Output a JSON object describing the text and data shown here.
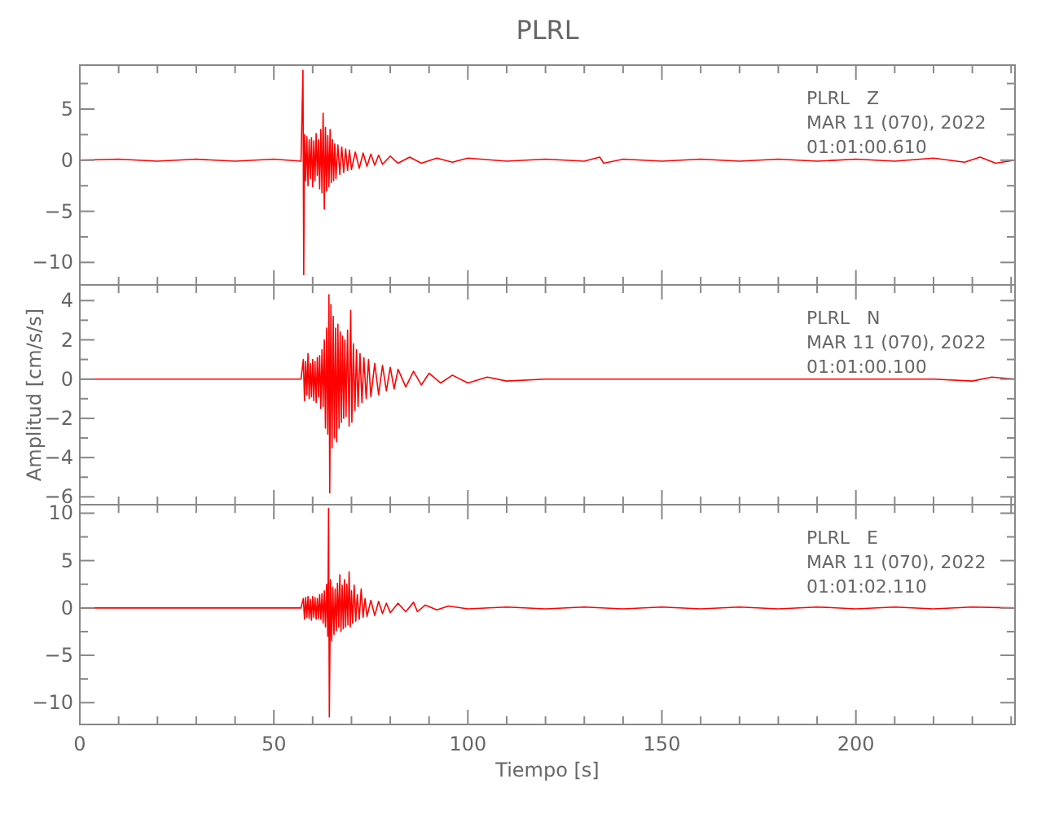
{
  "chart_data": [
    {
      "type": "line",
      "title": "PLRL",
      "annotations": [
        "PLRL   Z",
        "MAR 11 (070), 2022",
        "01:01:00.610"
      ],
      "tick_labels": "y",
      "grid": false,
      "marker": "none",
      "line_style": "solid",
      "xlim": [
        0,
        241
      ],
      "xticks": [
        0,
        {
          "value": 10,
          "label": null
        },
        {
          "value": 20,
          "label": null
        },
        {
          "value": 30,
          "label": null
        },
        {
          "value": 40,
          "label": null
        },
        50,
        {
          "value": 60,
          "label": null
        },
        {
          "value": 70,
          "label": null
        },
        {
          "value": 80,
          "label": null
        },
        {
          "value": 90,
          "label": null
        },
        100,
        {
          "value": 110,
          "label": null
        },
        {
          "value": 120,
          "label": null
        },
        {
          "value": 130,
          "label": null
        },
        {
          "value": 140,
          "label": null
        },
        150,
        {
          "value": 160,
          "label": null
        },
        {
          "value": 170,
          "label": null
        },
        {
          "value": 180,
          "label": null
        },
        {
          "value": 190,
          "label": null
        },
        200,
        {
          "value": 210,
          "label": null
        },
        {
          "value": 220,
          "label": null
        },
        {
          "value": 230,
          "label": null
        },
        {
          "value": 240,
          "label": null
        }
      ],
      "ylim": [
        -12.2,
        9.3
      ],
      "yticks": [
        -10,
        {
          "value": -7.5,
          "label": null
        },
        -5,
        {
          "value": -2.5,
          "label": null
        },
        0,
        {
          "value": 2.5,
          "label": null
        },
        5,
        {
          "value": 7.5,
          "label": null
        }
      ],
      "x": [
        0,
        10,
        20,
        30,
        40,
        50,
        57,
        57.5,
        57.7,
        57.9,
        58.2,
        58.5,
        58.8,
        59.1,
        59.4,
        59.7,
        60,
        60.3,
        60.6,
        60.9,
        61.2,
        61.5,
        61.8,
        62.1,
        62.4,
        62.7,
        63,
        63.3,
        63.6,
        63.9,
        64.2,
        64.5,
        64.8,
        65.1,
        65.4,
        65.7,
        66,
        66.5,
        67,
        67.5,
        68,
        68.5,
        69,
        69.5,
        70,
        71,
        72,
        73,
        74,
        75,
        76,
        77,
        78,
        80,
        82,
        85,
        88,
        92,
        96,
        100,
        110,
        120,
        130,
        134,
        135,
        140,
        150,
        160,
        170,
        180,
        190,
        200,
        210,
        220,
        228,
        232,
        236,
        241
      ],
      "series": [
        {
          "color": "#ff0000",
          "values": [
            0,
            0.1,
            -0.1,
            0.1,
            -0.1,
            0.1,
            -0.1,
            8.8,
            -11.2,
            2.5,
            -2.0,
            2.3,
            -2.5,
            2.0,
            -1.8,
            2.2,
            -2.6,
            1.9,
            -2.0,
            2.6,
            -1.5,
            2.0,
            -2.8,
            3.0,
            -3.2,
            4.6,
            -4.8,
            3.2,
            -3.0,
            2.4,
            -2.6,
            3.0,
            -2.2,
            2.0,
            -2.0,
            1.6,
            -1.8,
            1.5,
            -1.4,
            1.3,
            -1.2,
            1.1,
            -1.0,
            1.0,
            -0.9,
            0.8,
            -0.8,
            0.7,
            -0.6,
            0.6,
            -0.5,
            0.5,
            -0.4,
            0.4,
            -0.3,
            0.3,
            -0.3,
            0.2,
            -0.2,
            0.2,
            -0.1,
            0.1,
            -0.1,
            0.3,
            -0.3,
            0.1,
            -0.1,
            0.1,
            -0.1,
            0.1,
            -0.1,
            0.1,
            -0.1,
            0.2,
            -0.2,
            0.3,
            -0.3,
            0
          ]
        }
      ]
    },
    {
      "type": "line",
      "ylabel": "Amplitud [cm/s/s]",
      "annotations": [
        "PLRL   N",
        "MAR 11 (070), 2022",
        "01:01:00.100"
      ],
      "tick_labels": "y",
      "grid": false,
      "marker": "none",
      "line_style": "solid",
      "xlim": [
        0,
        241
      ],
      "xticks": [
        0,
        {
          "value": 10,
          "label": null
        },
        {
          "value": 20,
          "label": null
        },
        {
          "value": 30,
          "label": null
        },
        {
          "value": 40,
          "label": null
        },
        50,
        {
          "value": 60,
          "label": null
        },
        {
          "value": 70,
          "label": null
        },
        {
          "value": 80,
          "label": null
        },
        {
          "value": 90,
          "label": null
        },
        100,
        {
          "value": 110,
          "label": null
        },
        {
          "value": 120,
          "label": null
        },
        {
          "value": 130,
          "label": null
        },
        {
          "value": 140,
          "label": null
        },
        150,
        {
          "value": 160,
          "label": null
        },
        {
          "value": 170,
          "label": null
        },
        {
          "value": 180,
          "label": null
        },
        {
          "value": 190,
          "label": null
        },
        200,
        {
          "value": 210,
          "label": null
        },
        {
          "value": 220,
          "label": null
        },
        {
          "value": 230,
          "label": null
        },
        {
          "value": 240,
          "label": null
        }
      ],
      "ylim": [
        -6.4,
        4.8
      ],
      "yticks": [
        -6,
        {
          "value": -5,
          "label": null
        },
        -4,
        {
          "value": -3,
          "label": null
        },
        -2,
        {
          "value": -1,
          "label": null
        },
        0,
        {
          "value": 1,
          "label": null
        },
        2,
        {
          "value": 3,
          "label": null
        },
        4
      ],
      "x": [
        0,
        10,
        20,
        30,
        40,
        50,
        57,
        57.6,
        57.9,
        58.2,
        58.5,
        58.8,
        59.1,
        59.4,
        59.7,
        60,
        60.3,
        60.6,
        60.9,
        61.2,
        61.5,
        61.8,
        62.1,
        62.4,
        62.7,
        63,
        63.3,
        63.6,
        63.9,
        64.2,
        64.4,
        64.7,
        65,
        65.3,
        65.6,
        65.9,
        66.2,
        66.5,
        66.8,
        67.1,
        67.4,
        67.7,
        68,
        68.3,
        68.6,
        69,
        69.4,
        69.8,
        70.1,
        70.5,
        70.9,
        71.3,
        71.7,
        72.2,
        72.7,
        73.2,
        73.8,
        74.4,
        75,
        76,
        77,
        78,
        79,
        80,
        81,
        82,
        84,
        86,
        88,
        90,
        93,
        96,
        100,
        105,
        110,
        120,
        130,
        140,
        150,
        160,
        170,
        180,
        190,
        200,
        210,
        220,
        230,
        235,
        241
      ],
      "series": [
        {
          "color": "#ff0000",
          "values": [
            0,
            0,
            0,
            0,
            0,
            0,
            0,
            1.0,
            -1.1,
            0.9,
            -0.8,
            1.3,
            -1.0,
            0.8,
            -0.9,
            1.0,
            -1.1,
            0.9,
            -1.2,
            1.1,
            -0.9,
            1.2,
            -1.5,
            1.5,
            -1.4,
            2.0,
            -2.5,
            2.6,
            -2.8,
            4.3,
            -5.8,
            3.8,
            -3.5,
            3.2,
            -3.0,
            2.6,
            -3.2,
            2.8,
            -2.5,
            2.4,
            -2.2,
            2.2,
            -2.0,
            2.0,
            -1.9,
            2.5,
            -2.4,
            3.5,
            -2.2,
            1.8,
            -1.6,
            1.5,
            -1.4,
            1.3,
            -1.2,
            1.1,
            -1.0,
            1.0,
            -0.9,
            0.8,
            -0.8,
            0.7,
            -0.6,
            0.6,
            -0.5,
            0.5,
            -0.4,
            0.4,
            -0.3,
            0.3,
            -0.2,
            0.2,
            -0.2,
            0.1,
            -0.1,
            0,
            0,
            0,
            0,
            0,
            0,
            0,
            0,
            0,
            0,
            0,
            -0.1,
            0.1,
            0
          ]
        }
      ]
    },
    {
      "type": "line",
      "xlabel": "Tiempo [s]",
      "annotations": [
        "PLRL   E",
        "MAR 11 (070), 2022",
        "01:01:02.110"
      ],
      "grid": false,
      "marker": "none",
      "line_style": "solid",
      "xlim": [
        0,
        241
      ],
      "xticks": [
        0,
        {
          "value": 10,
          "label": null
        },
        {
          "value": 20,
          "label": null
        },
        {
          "value": 30,
          "label": null
        },
        {
          "value": 40,
          "label": null
        },
        50,
        {
          "value": 60,
          "label": null
        },
        {
          "value": 70,
          "label": null
        },
        {
          "value": 80,
          "label": null
        },
        {
          "value": 90,
          "label": null
        },
        100,
        {
          "value": 110,
          "label": null
        },
        {
          "value": 120,
          "label": null
        },
        {
          "value": 130,
          "label": null
        },
        {
          "value": 140,
          "label": null
        },
        150,
        {
          "value": 160,
          "label": null
        },
        {
          "value": 170,
          "label": null
        },
        {
          "value": 180,
          "label": null
        },
        {
          "value": 190,
          "label": null
        },
        200,
        {
          "value": 210,
          "label": null
        },
        {
          "value": 220,
          "label": null
        },
        {
          "value": 230,
          "label": null
        },
        {
          "value": 240,
          "label": null
        }
      ],
      "ylim": [
        -12.3,
        10.9
      ],
      "yticks": [
        -10,
        {
          "value": -7.5,
          "label": null
        },
        -5,
        {
          "value": -2.5,
          "label": null
        },
        0,
        {
          "value": 2.5,
          "label": null
        },
        5,
        {
          "value": 7.5,
          "label": null
        },
        10
      ],
      "x": [
        0,
        10,
        20,
        30,
        40,
        50,
        57,
        57.6,
        57.9,
        58.2,
        58.5,
        58.8,
        59.1,
        59.4,
        59.7,
        60,
        60.3,
        60.6,
        60.9,
        61.2,
        61.5,
        61.8,
        62.1,
        62.4,
        62.7,
        63,
        63.3,
        63.6,
        63.9,
        64.1,
        64.3,
        64.6,
        64.9,
        65.2,
        65.5,
        65.8,
        66.1,
        66.4,
        66.7,
        67,
        67.3,
        67.6,
        67.9,
        68.2,
        68.5,
        68.8,
        69.1,
        69.4,
        69.7,
        70,
        70.3,
        70.7,
        71.1,
        71.5,
        72,
        72.5,
        73,
        73.5,
        74,
        75,
        76,
        77,
        78,
        79,
        80,
        82,
        84,
        86,
        87,
        89,
        92,
        95,
        100,
        110,
        120,
        130,
        140,
        150,
        160,
        170,
        180,
        190,
        200,
        210,
        220,
        230,
        241
      ],
      "series": [
        {
          "color": "#ff0000",
          "values": [
            0,
            0,
            0,
            0,
            0,
            0,
            0,
            1.0,
            -1.2,
            1.1,
            -1.0,
            1.2,
            -1.1,
            0.9,
            -1.3,
            1.2,
            -1.0,
            1.1,
            -1.2,
            1.0,
            -1.1,
            1.4,
            -1.2,
            1.5,
            -1.6,
            1.8,
            -2.0,
            2.5,
            -3.0,
            10.5,
            -11.5,
            3.0,
            -3.5,
            2.2,
            -2.8,
            2.0,
            -2.4,
            2.6,
            -2.0,
            3.5,
            -2.5,
            2.4,
            -2.2,
            3.0,
            -2.0,
            2.5,
            -1.8,
            3.8,
            -2.0,
            1.8,
            -1.6,
            2.4,
            -1.4,
            1.4,
            -1.2,
            2.0,
            -1.0,
            1.0,
            -0.9,
            0.8,
            -0.8,
            0.7,
            -0.6,
            0.5,
            -0.5,
            0.5,
            -0.4,
            0.6,
            -0.4,
            0.3,
            -0.2,
            0.2,
            -0.1,
            0.1,
            -0.1,
            0.1,
            -0.1,
            0.1,
            -0.1,
            0.1,
            -0.1,
            0.1,
            -0.1,
            0.1,
            -0.1,
            0.1,
            0
          ]
        }
      ]
    }
  ]
}
